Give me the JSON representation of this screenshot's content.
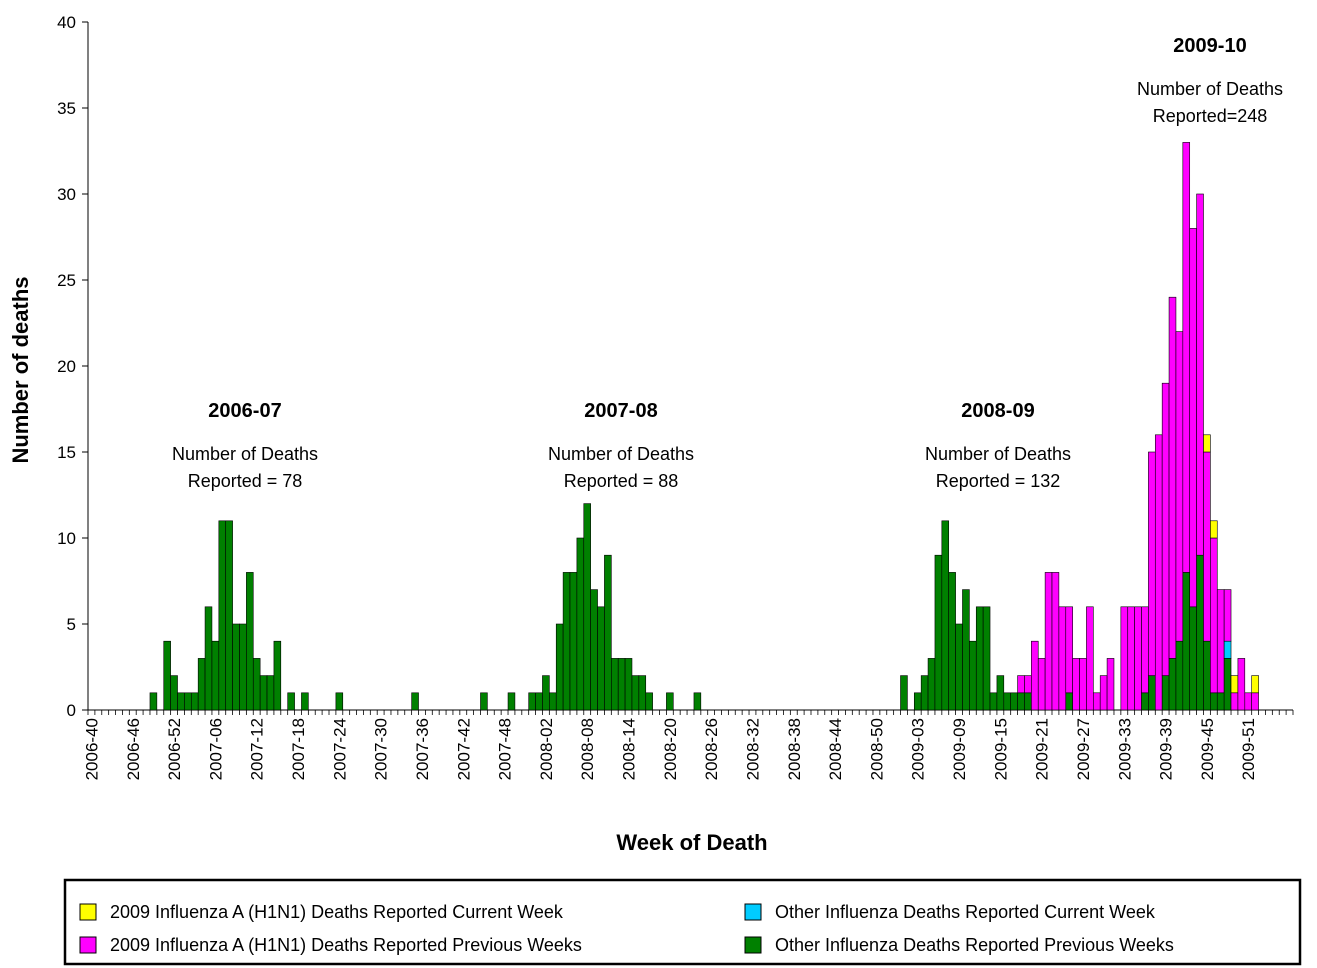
{
  "chart_data": {
    "type": "stacked_bar",
    "x_label": "Week of Death",
    "y_label": "Number of deaths",
    "ylim": [
      0,
      40
    ],
    "yticks": [
      0,
      5,
      10,
      15,
      20,
      25,
      30,
      35,
      40
    ],
    "categories": [
      "2006-40",
      null,
      null,
      null,
      null,
      null,
      "2006-46",
      null,
      null,
      null,
      null,
      null,
      "2006-52",
      null,
      null,
      null,
      null,
      null,
      "2007-06",
      null,
      null,
      null,
      null,
      null,
      "2007-12",
      null,
      null,
      null,
      null,
      null,
      "2007-18",
      null,
      null,
      null,
      null,
      null,
      "2007-24",
      null,
      null,
      null,
      null,
      null,
      "2007-30",
      null,
      null,
      null,
      null,
      null,
      "2007-36",
      null,
      null,
      null,
      null,
      null,
      "2007-42",
      null,
      null,
      null,
      null,
      null,
      "2007-48",
      null,
      null,
      null,
      null,
      null,
      "2008-02",
      null,
      null,
      null,
      null,
      null,
      "2008-08",
      null,
      null,
      null,
      null,
      null,
      "2008-14",
      null,
      null,
      null,
      null,
      null,
      "2008-20",
      null,
      null,
      null,
      null,
      null,
      "2008-26",
      null,
      null,
      null,
      null,
      null,
      "2008-32",
      null,
      null,
      null,
      null,
      null,
      "2008-38",
      null,
      null,
      null,
      null,
      null,
      "2008-44",
      null,
      null,
      null,
      null,
      null,
      "2008-50",
      null,
      null,
      null,
      null,
      null,
      "2009-03",
      null,
      null,
      null,
      null,
      null,
      "2009-09",
      null,
      null,
      null,
      null,
      null,
      "2009-15",
      null,
      null,
      null,
      null,
      null,
      "2009-21",
      null,
      null,
      null,
      null,
      null,
      "2009-27",
      null,
      null,
      null,
      null,
      null,
      "2009-33",
      null,
      null,
      null,
      null,
      null,
      "2009-39",
      null,
      null,
      null,
      null,
      null,
      "2009-45",
      null,
      null,
      null,
      null,
      null,
      "2009-51",
      null,
      null,
      null,
      null,
      null,
      null
    ],
    "series": [
      {
        "name": "Other Influenza Deaths Reported Previous Weeks",
        "color": "#008000",
        "values": [
          0,
          0,
          0,
          0,
          0,
          0,
          0,
          0,
          0,
          1,
          0,
          4,
          2,
          1,
          1,
          1,
          3,
          6,
          4,
          11,
          11,
          5,
          5,
          8,
          3,
          2,
          2,
          4,
          0,
          1,
          0,
          1,
          0,
          0,
          0,
          0,
          1,
          0,
          0,
          0,
          0,
          0,
          0,
          0,
          0,
          0,
          0,
          1,
          0,
          0,
          0,
          0,
          0,
          0,
          0,
          0,
          0,
          1,
          0,
          0,
          0,
          1,
          0,
          0,
          1,
          1,
          2,
          1,
          5,
          8,
          8,
          10,
          12,
          7,
          6,
          9,
          3,
          3,
          3,
          2,
          2,
          1,
          0,
          0,
          1,
          0,
          0,
          0,
          1,
          0,
          0,
          0,
          0,
          0,
          0,
          0,
          0,
          0,
          0,
          0,
          0,
          0,
          0,
          0,
          0,
          0,
          0,
          0,
          0,
          0,
          0,
          0,
          0,
          0,
          0,
          0,
          0,
          0,
          2,
          0,
          1,
          2,
          3,
          9,
          11,
          8,
          5,
          7,
          4,
          6,
          6,
          1,
          2,
          1,
          1,
          1,
          1,
          0,
          0,
          0,
          0,
          0,
          1,
          0,
          0,
          0,
          0,
          0,
          0,
          0,
          0,
          0,
          0,
          1,
          2,
          0,
          2,
          3,
          4,
          8,
          6,
          9,
          4,
          1,
          1,
          3,
          0,
          0,
          0,
          0,
          0,
          0,
          0,
          0,
          0
        ]
      },
      {
        "name": "Other Influenza Deaths Reported Current Week",
        "color": "#00ccff",
        "values": [
          0,
          0,
          0,
          0,
          0,
          0,
          0,
          0,
          0,
          0,
          0,
          0,
          0,
          0,
          0,
          0,
          0,
          0,
          0,
          0,
          0,
          0,
          0,
          0,
          0,
          0,
          0,
          0,
          0,
          0,
          0,
          0,
          0,
          0,
          0,
          0,
          0,
          0,
          0,
          0,
          0,
          0,
          0,
          0,
          0,
          0,
          0,
          0,
          0,
          0,
          0,
          0,
          0,
          0,
          0,
          0,
          0,
          0,
          0,
          0,
          0,
          0,
          0,
          0,
          0,
          0,
          0,
          0,
          0,
          0,
          0,
          0,
          0,
          0,
          0,
          0,
          0,
          0,
          0,
          0,
          0,
          0,
          0,
          0,
          0,
          0,
          0,
          0,
          0,
          0,
          0,
          0,
          0,
          0,
          0,
          0,
          0,
          0,
          0,
          0,
          0,
          0,
          0,
          0,
          0,
          0,
          0,
          0,
          0,
          0,
          0,
          0,
          0,
          0,
          0,
          0,
          0,
          0,
          0,
          0,
          0,
          0,
          0,
          0,
          0,
          0,
          0,
          0,
          0,
          0,
          0,
          0,
          0,
          0,
          0,
          0,
          0,
          0,
          0,
          0,
          0,
          0,
          0,
          0,
          0,
          0,
          0,
          0,
          0,
          0,
          0,
          0,
          0,
          0,
          0,
          0,
          0,
          0,
          0,
          0,
          0,
          0,
          0,
          0,
          0,
          1,
          0,
          0,
          0,
          0,
          0,
          0,
          0,
          0,
          0
        ]
      },
      {
        "name": "2009 Influenza A (H1N1) Deaths Reported Previous Weeks",
        "color": "#ff00ff",
        "values": [
          0,
          0,
          0,
          0,
          0,
          0,
          0,
          0,
          0,
          0,
          0,
          0,
          0,
          0,
          0,
          0,
          0,
          0,
          0,
          0,
          0,
          0,
          0,
          0,
          0,
          0,
          0,
          0,
          0,
          0,
          0,
          0,
          0,
          0,
          0,
          0,
          0,
          0,
          0,
          0,
          0,
          0,
          0,
          0,
          0,
          0,
          0,
          0,
          0,
          0,
          0,
          0,
          0,
          0,
          0,
          0,
          0,
          0,
          0,
          0,
          0,
          0,
          0,
          0,
          0,
          0,
          0,
          0,
          0,
          0,
          0,
          0,
          0,
          0,
          0,
          0,
          0,
          0,
          0,
          0,
          0,
          0,
          0,
          0,
          0,
          0,
          0,
          0,
          0,
          0,
          0,
          0,
          0,
          0,
          0,
          0,
          0,
          0,
          0,
          0,
          0,
          0,
          0,
          0,
          0,
          0,
          0,
          0,
          0,
          0,
          0,
          0,
          0,
          0,
          0,
          0,
          0,
          0,
          0,
          0,
          0,
          0,
          0,
          0,
          0,
          0,
          0,
          0,
          0,
          0,
          0,
          0,
          0,
          0,
          0,
          1,
          1,
          4,
          3,
          8,
          8,
          6,
          5,
          3,
          3,
          6,
          1,
          2,
          3,
          0,
          6,
          6,
          6,
          5,
          13,
          16,
          17,
          21,
          18,
          25,
          22,
          21,
          11,
          9,
          6,
          3,
          1,
          3,
          1,
          1,
          0,
          0,
          0,
          0,
          0
        ]
      },
      {
        "name": "2009 Influenza A (H1N1) Deaths Reported Current Week",
        "color": "#ffff00",
        "values": [
          0,
          0,
          0,
          0,
          0,
          0,
          0,
          0,
          0,
          0,
          0,
          0,
          0,
          0,
          0,
          0,
          0,
          0,
          0,
          0,
          0,
          0,
          0,
          0,
          0,
          0,
          0,
          0,
          0,
          0,
          0,
          0,
          0,
          0,
          0,
          0,
          0,
          0,
          0,
          0,
          0,
          0,
          0,
          0,
          0,
          0,
          0,
          0,
          0,
          0,
          0,
          0,
          0,
          0,
          0,
          0,
          0,
          0,
          0,
          0,
          0,
          0,
          0,
          0,
          0,
          0,
          0,
          0,
          0,
          0,
          0,
          0,
          0,
          0,
          0,
          0,
          0,
          0,
          0,
          0,
          0,
          0,
          0,
          0,
          0,
          0,
          0,
          0,
          0,
          0,
          0,
          0,
          0,
          0,
          0,
          0,
          0,
          0,
          0,
          0,
          0,
          0,
          0,
          0,
          0,
          0,
          0,
          0,
          0,
          0,
          0,
          0,
          0,
          0,
          0,
          0,
          0,
          0,
          0,
          0,
          0,
          0,
          0,
          0,
          0,
          0,
          0,
          0,
          0,
          0,
          0,
          0,
          0,
          0,
          0,
          0,
          0,
          0,
          0,
          0,
          0,
          0,
          0,
          0,
          0,
          0,
          0,
          0,
          0,
          0,
          0,
          0,
          0,
          0,
          0,
          0,
          0,
          0,
          0,
          0,
          0,
          0,
          1,
          1,
          0,
          0,
          1,
          0,
          0,
          1,
          0,
          0,
          0,
          0,
          0
        ]
      }
    ],
    "annotations": [
      {
        "title": "2006-07",
        "lines": [
          "Number of Deaths",
          "Reported = 78"
        ]
      },
      {
        "title": "2007-08",
        "lines": [
          "Number of Deaths",
          "Reported = 88"
        ]
      },
      {
        "title": "2008-09",
        "lines": [
          "Number of Deaths",
          "Reported = 132"
        ]
      },
      {
        "title": "2009-10",
        "lines": [
          "Number of Deaths",
          "Reported=248"
        ]
      }
    ]
  }
}
